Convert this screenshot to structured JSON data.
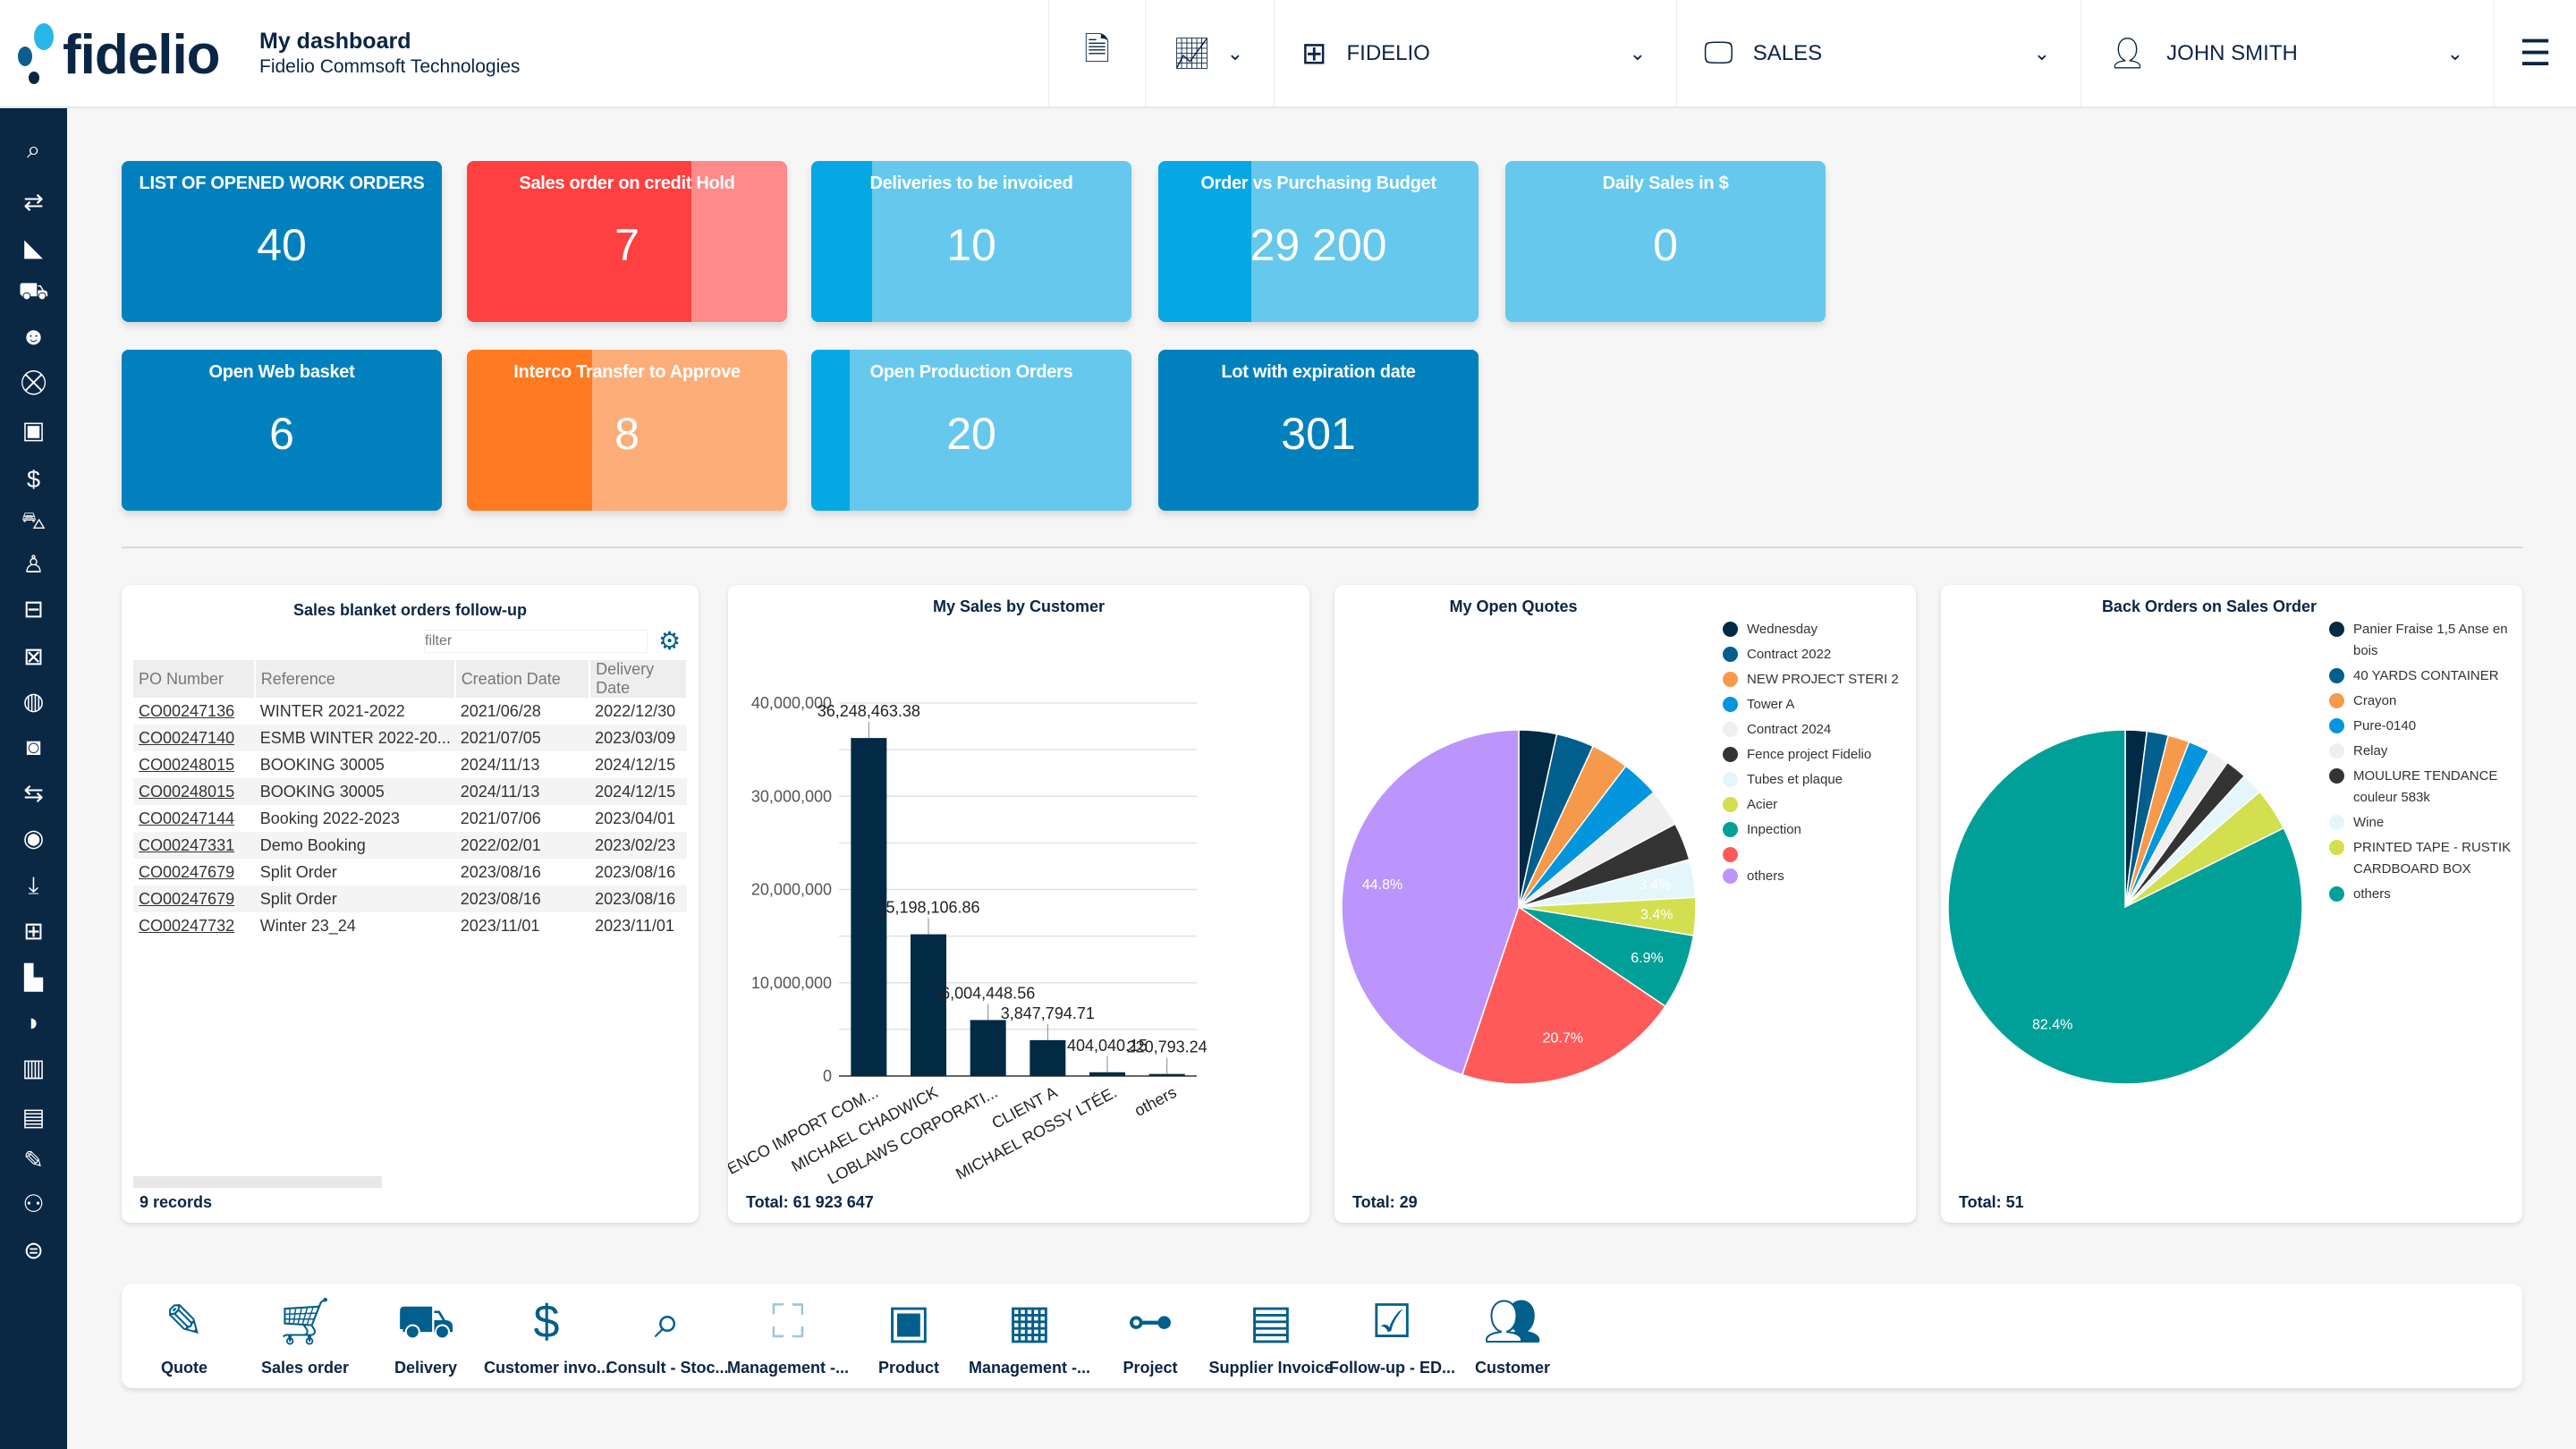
{
  "header": {
    "logo_text": "fidelio",
    "title": "My dashboard",
    "subtitle": "Fidelio Commsoft Technologies",
    "company": "FIDELIO",
    "module": "SALES",
    "user": "JOHN SMITH"
  },
  "sidebar": {
    "icons": [
      "search",
      "transfer",
      "chart-area",
      "truck",
      "users",
      "cart",
      "contact-book",
      "invoice",
      "shopping-cart",
      "user-tie",
      "sitemap",
      "hand-box",
      "hand-coins",
      "money",
      "exchange",
      "hand-holding-usd",
      "download-box",
      "grid",
      "industry",
      "comment",
      "bar-chart",
      "document",
      "wrench",
      "user-gear",
      "dollar"
    ]
  },
  "tiles": [
    {
      "title": "LIST OF OPENED WORK ORDERS",
      "value": "40",
      "color": "#0081be",
      "fill_color": "#0081be",
      "progress": 1
    },
    {
      "title": "Sales order on credit Hold",
      "value": "7",
      "color": "#ff8a8a",
      "fill_color": "#ff4040",
      "progress": 0.7
    },
    {
      "title": "Deliveries to be invoiced",
      "value": "10",
      "color": "#66c8ec",
      "fill_color": "#05a8e2",
      "progress": 0.19
    },
    {
      "title": "Order vs Purchasing Budget",
      "value": "29 200",
      "color": "#66c8ec",
      "fill_color": "#05a8e2",
      "progress": 0.29
    },
    {
      "title": "Daily Sales in $",
      "value": "0",
      "color": "#66c8ec",
      "fill_color": "#05a8e2",
      "progress": 0
    },
    {
      "title": "Open Web basket",
      "value": "6",
      "color": "#0081be",
      "fill_color": "#0081be",
      "progress": 1
    },
    {
      "title": "Interco Transfer to Approve",
      "value": "8",
      "color": "#fdae78",
      "fill_color": "#ff7a20",
      "progress": 0.39
    },
    {
      "title": "Open Production Orders",
      "value": "20",
      "color": "#66c8ec",
      "fill_color": "#05a8e2",
      "progress": 0.12
    },
    {
      "title": "Lot with expiration date",
      "value": "301",
      "color": "#0081be",
      "fill_color": "#0081be",
      "progress": 1
    }
  ],
  "blanket": {
    "title": "Sales blanket orders follow-up",
    "filter_placeholder": "filter",
    "records": "9 records",
    "columns": [
      "PO Number",
      "Reference",
      "Creation Date",
      "Delivery Date"
    ],
    "rows": [
      [
        "CO00247136",
        "WINTER 2021-2022",
        "2021/06/28",
        "2022/12/30"
      ],
      [
        "CO00247140",
        "ESMB WINTER 2022-20...",
        "2021/07/05",
        "2023/03/09"
      ],
      [
        "CO00248015",
        "BOOKING 30005",
        "2024/11/13",
        "2024/12/15"
      ],
      [
        "CO00248015",
        "BOOKING 30005",
        "2024/11/13",
        "2024/12/15"
      ],
      [
        "CO00247144",
        "Booking 2022-2023",
        "2021/07/06",
        "2023/04/01"
      ],
      [
        "CO00247331",
        "Demo Booking",
        "2022/02/01",
        "2023/02/23"
      ],
      [
        "CO00247679",
        "Split Order",
        "2023/08/16",
        "2023/08/16"
      ],
      [
        "CO00247679",
        "Split Order",
        "2023/08/16",
        "2023/08/16"
      ],
      [
        "CO00247732",
        "Winter 23_24",
        "2023/11/01",
        "2023/11/01"
      ]
    ]
  },
  "chart_data": [
    {
      "type": "bar",
      "title": "My Sales by Customer",
      "total": "Total: 61 923 647",
      "categories": [
        "ENCO IMPORT COM...",
        "MICHAEL CHADWICK",
        "LOBLAWS CORPORATI...",
        "CLIENT A",
        "MICHAEL ROSSY LTÉE.",
        "others"
      ],
      "values": [
        36248463.38,
        15198106.86,
        6004448.56,
        3847794.71,
        404040.15,
        220793.24
      ],
      "value_labels": [
        "36,248,463.38",
        "15,198,106.86",
        "6,004,448.56",
        "3,847,794.71",
        "404,040.15",
        "220,793.24"
      ],
      "ylim": [
        0,
        40000000
      ],
      "yticks": [
        "0",
        "10,000,000",
        "20,000,000",
        "30,000,000",
        "40,000,000"
      ],
      "grid": true,
      "color": "#022a44"
    },
    {
      "type": "pie",
      "title": "My Open Quotes",
      "total": "Total: 29",
      "legend": "right",
      "slices": [
        {
          "name": "Wednesday",
          "value": 1,
          "color": "#022a44"
        },
        {
          "name": "Contract 2022",
          "value": 1,
          "color": "#025e8c"
        },
        {
          "name": "NEW PROJECT STERI 2",
          "value": 1,
          "color": "#f7994a"
        },
        {
          "name": "Tower A",
          "value": 1,
          "color": "#0395dd"
        },
        {
          "name": "Contract 2024",
          "value": 1,
          "color": "#efefef"
        },
        {
          "name": "Fence project Fidelio",
          "value": 1,
          "color": "#333333"
        },
        {
          "name": "Tubes et plaque",
          "value": 1,
          "color": "#e4f6fc",
          "label": "3.4%"
        },
        {
          "name": "Acier",
          "value": 1,
          "color": "#d3df4e",
          "label": "3.4%"
        },
        {
          "name": "Inpection",
          "value": 2,
          "color": "#00a098",
          "label": "6.9%"
        },
        {
          "name": "",
          "value": 6,
          "color": "#ff5a5a",
          "label": "20.7%"
        },
        {
          "name": "others",
          "value": 13,
          "color": "#bb95fb",
          "label": "44.8%"
        }
      ]
    },
    {
      "type": "pie",
      "title": "Back Orders on Sales Order",
      "total": "Total: 51",
      "legend": "right",
      "slices": [
        {
          "name": "Panier Fraise 1,5 Anse en bois",
          "value": 1,
          "color": "#022a44"
        },
        {
          "name": "40 YARDS CONTAINER",
          "value": 1,
          "color": "#025e8c"
        },
        {
          "name": "Crayon",
          "value": 1,
          "color": "#f7994a"
        },
        {
          "name": "Pure-0140",
          "value": 1,
          "color": "#0395dd"
        },
        {
          "name": "Relay",
          "value": 1,
          "color": "#efefef"
        },
        {
          "name": "MOULURE TENDANCE couleur 583k",
          "value": 1,
          "color": "#333333"
        },
        {
          "name": "Wine",
          "value": 1,
          "color": "#e4f6fc"
        },
        {
          "name": "PRINTED TAPE - RUSTIK CARDBOARD BOX",
          "value": 2,
          "color": "#d3df4e"
        },
        {
          "name": "others",
          "value": 42,
          "color": "#00a098",
          "label": "82.4%"
        }
      ]
    }
  ],
  "shortcuts": [
    {
      "label": "Quote",
      "icon": "quote-doc"
    },
    {
      "label": "Sales order",
      "icon": "cart"
    },
    {
      "label": "Delivery",
      "icon": "truck"
    },
    {
      "label": "Customer invo...",
      "icon": "invoice"
    },
    {
      "label": "Consult - Stoc...",
      "icon": "search"
    },
    {
      "label": "Management -...",
      "icon": "map"
    },
    {
      "label": "Product",
      "icon": "box"
    },
    {
      "label": "Management -...",
      "icon": "calendar"
    },
    {
      "label": "Project",
      "icon": "project"
    },
    {
      "label": "Supplier Invoice",
      "icon": "supplier-invoice"
    },
    {
      "label": "Follow-up - ED...",
      "icon": "checkbox"
    },
    {
      "label": "Customer",
      "icon": "users"
    }
  ]
}
